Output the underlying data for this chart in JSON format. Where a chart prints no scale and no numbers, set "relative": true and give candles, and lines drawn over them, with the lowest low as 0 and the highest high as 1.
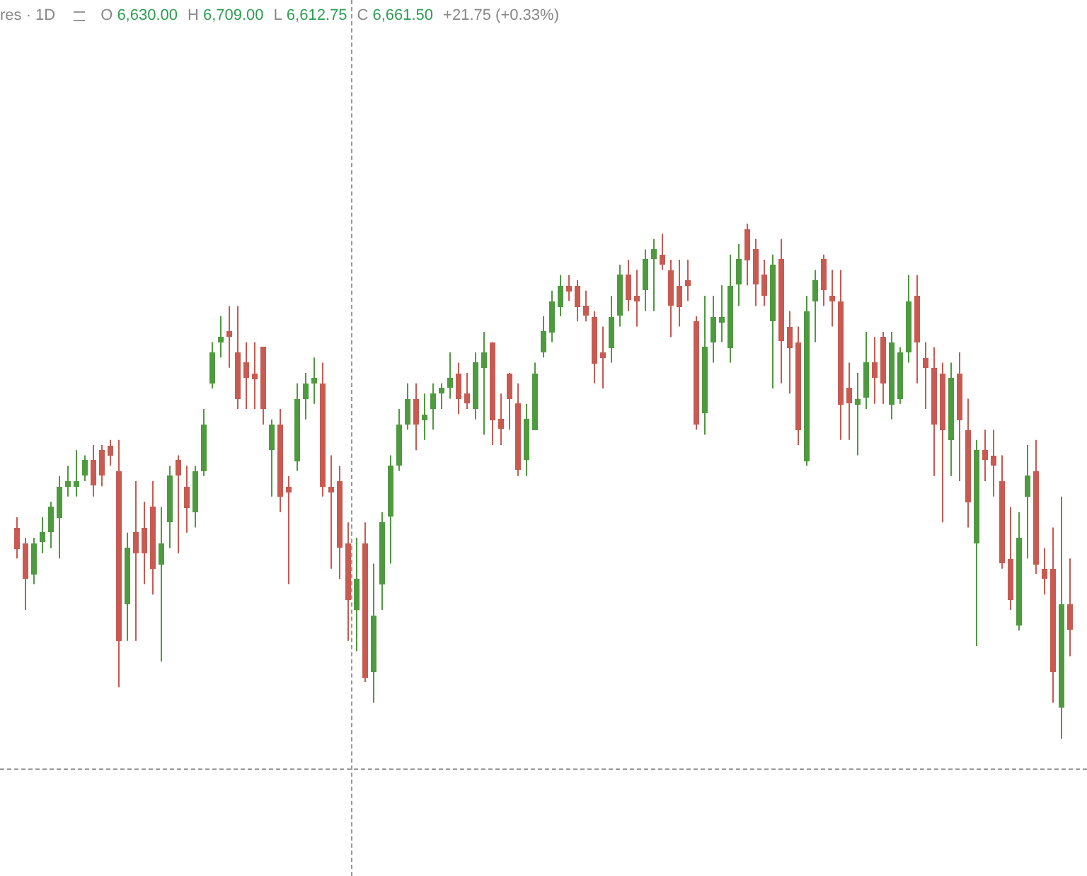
{
  "chart_data": {
    "type": "candlestick",
    "relative": true,
    "annotations": [
      "res · 1D",
      "O",
      "6,630.00",
      "H",
      "6,709.00",
      "L",
      "6,612.75",
      "C",
      "6,661.50",
      "+21.75 (+0.33%)"
    ],
    "categories": [
      null,
      null,
      null,
      null,
      null,
      null,
      null,
      null,
      null,
      null,
      null,
      null,
      null,
      null,
      null,
      null,
      null,
      null,
      null,
      null,
      null,
      null,
      null,
      null,
      null,
      null,
      null,
      null,
      null,
      null,
      null,
      null,
      null,
      null,
      null,
      null,
      null,
      null,
      null,
      null,
      null,
      null,
      null,
      null,
      null,
      null,
      null,
      null,
      null,
      null,
      null,
      null,
      null,
      null,
      null,
      null,
      null,
      null,
      null,
      null,
      null,
      null,
      null,
      null,
      null,
      null,
      null,
      null,
      null,
      null,
      null,
      null,
      null,
      null,
      null,
      null,
      null,
      null,
      null,
      null,
      null,
      null,
      null,
      null,
      null,
      null,
      null,
      null,
      null,
      null,
      null,
      null,
      null,
      null,
      null,
      null,
      null,
      null,
      null,
      null,
      null,
      null,
      null,
      null,
      null,
      null,
      null,
      null,
      null,
      null,
      null,
      null,
      null,
      null,
      null,
      null,
      null,
      null,
      null,
      null,
      null,
      null,
      null,
      null,
      null
    ],
    "ohlc": [
      [
        0.41,
        0.43,
        0.35,
        0.37
      ],
      [
        0.38,
        0.39,
        0.25,
        0.31
      ],
      [
        0.32,
        0.39,
        0.3,
        0.38
      ],
      [
        0.38,
        0.43,
        0.36,
        0.4
      ],
      [
        0.4,
        0.46,
        0.37,
        0.45
      ],
      [
        0.43,
        0.51,
        0.35,
        0.49
      ],
      [
        0.49,
        0.53,
        0.47,
        0.5
      ],
      [
        0.49,
        0.56,
        0.47,
        0.5
      ],
      [
        0.51,
        0.55,
        0.5,
        0.54
      ],
      [
        0.54,
        0.57,
        0.47,
        0.49
      ],
      [
        0.56,
        0.57,
        0.49,
        0.51
      ],
      [
        0.57,
        0.58,
        0.53,
        0.55
      ],
      [
        0.52,
        0.58,
        0.1,
        0.19
      ],
      [
        0.26,
        0.4,
        0.19,
        0.37
      ],
      [
        0.4,
        0.5,
        0.19,
        0.36
      ],
      [
        0.41,
        0.46,
        0.3,
        0.36
      ],
      [
        0.45,
        0.5,
        0.28,
        0.33
      ],
      [
        0.34,
        0.45,
        0.15,
        0.38
      ],
      [
        0.42,
        0.53,
        0.37,
        0.51
      ],
      [
        0.54,
        0.55,
        0.36,
        0.51
      ],
      [
        0.49,
        0.53,
        0.4,
        0.45
      ],
      [
        0.44,
        0.53,
        0.41,
        0.52
      ],
      [
        0.52,
        0.64,
        0.51,
        0.61
      ],
      [
        0.69,
        0.77,
        0.68,
        0.75
      ],
      [
        0.77,
        0.82,
        0.74,
        0.78
      ],
      [
        0.79,
        0.84,
        0.72,
        0.78
      ],
      [
        0.75,
        0.84,
        0.64,
        0.66
      ],
      [
        0.73,
        0.77,
        0.64,
        0.7
      ],
      [
        0.71,
        0.77,
        0.64,
        0.7
      ],
      [
        0.76,
        0.76,
        0.61,
        0.64
      ],
      [
        0.56,
        0.62,
        0.47,
        0.61
      ],
      [
        0.61,
        0.64,
        0.44,
        0.47
      ],
      [
        0.49,
        0.51,
        0.3,
        0.48
      ],
      [
        0.54,
        0.69,
        0.52,
        0.66
      ],
      [
        0.66,
        0.71,
        0.62,
        0.69
      ],
      [
        0.69,
        0.74,
        0.65,
        0.7
      ],
      [
        0.69,
        0.73,
        0.47,
        0.49
      ],
      [
        0.49,
        0.55,
        0.33,
        0.48
      ],
      [
        0.5,
        0.53,
        0.31,
        0.37
      ],
      [
        0.38,
        0.42,
        0.19,
        0.27
      ],
      [
        0.25,
        0.39,
        0.17,
        0.31
      ],
      [
        0.38,
        0.42,
        0.11,
        0.12
      ],
      [
        0.13,
        0.34,
        0.07,
        0.24
      ],
      [
        0.3,
        0.44,
        0.25,
        0.42
      ],
      [
        0.43,
        0.55,
        0.34,
        0.53
      ],
      [
        0.53,
        0.64,
        0.52,
        0.61
      ],
      [
        0.61,
        0.69,
        0.6,
        0.66
      ],
      [
        0.66,
        0.69,
        0.56,
        0.61
      ],
      [
        0.62,
        0.67,
        0.58,
        0.63
      ],
      [
        0.64,
        0.69,
        0.6,
        0.67
      ],
      [
        0.67,
        0.69,
        0.64,
        0.68
      ],
      [
        0.68,
        0.75,
        0.66,
        0.7
      ],
      [
        0.71,
        0.73,
        0.63,
        0.66
      ],
      [
        0.67,
        0.71,
        0.64,
        0.65
      ],
      [
        0.64,
        0.75,
        0.62,
        0.73
      ],
      [
        0.72,
        0.79,
        0.59,
        0.75
      ],
      [
        0.77,
        0.77,
        0.57,
        0.62
      ],
      [
        0.62,
        0.67,
        0.57,
        0.6
      ],
      [
        0.71,
        0.71,
        0.6,
        0.66
      ],
      [
        0.65,
        0.69,
        0.51,
        0.52
      ],
      [
        0.54,
        0.65,
        0.51,
        0.62
      ],
      [
        0.6,
        0.73,
        0.6,
        0.71
      ],
      [
        0.75,
        0.82,
        0.74,
        0.79
      ],
      [
        0.79,
        0.87,
        0.77,
        0.85
      ],
      [
        0.84,
        0.9,
        0.82,
        0.88
      ],
      [
        0.88,
        0.9,
        0.85,
        0.87
      ],
      [
        0.88,
        0.89,
        0.81,
        0.84
      ],
      [
        0.84,
        0.87,
        0.81,
        0.82
      ],
      [
        0.82,
        0.83,
        0.69,
        0.73
      ],
      [
        0.75,
        0.8,
        0.68,
        0.74
      ],
      [
        0.76,
        0.86,
        0.73,
        0.82
      ],
      [
        0.82,
        0.92,
        0.8,
        0.9
      ],
      [
        0.9,
        0.93,
        0.83,
        0.85
      ],
      [
        0.86,
        0.91,
        0.8,
        0.85
      ],
      [
        0.87,
        0.95,
        0.83,
        0.93
      ],
      [
        0.93,
        0.97,
        0.83,
        0.95
      ],
      [
        0.94,
        0.98,
        0.91,
        0.92
      ],
      [
        0.91,
        0.93,
        0.78,
        0.84
      ],
      [
        0.88,
        0.93,
        0.8,
        0.84
      ],
      [
        0.89,
        0.93,
        0.85,
        0.88
      ],
      [
        0.81,
        0.82,
        0.6,
        0.61
      ],
      [
        0.63,
        0.86,
        0.59,
        0.76
      ],
      [
        0.77,
        0.86,
        0.73,
        0.82
      ],
      [
        0.81,
        0.88,
        0.77,
        0.82
      ],
      [
        0.76,
        0.94,
        0.73,
        0.88
      ],
      [
        0.88,
        0.96,
        0.84,
        0.93
      ],
      [
        0.99,
        1.0,
        0.88,
        0.93
      ],
      [
        0.95,
        0.97,
        0.84,
        0.88
      ],
      [
        0.9,
        0.93,
        0.84,
        0.86
      ],
      [
        0.81,
        0.94,
        0.68,
        0.92
      ],
      [
        0.93,
        0.97,
        0.69,
        0.77
      ],
      [
        0.8,
        0.83,
        0.67,
        0.76
      ],
      [
        0.77,
        0.8,
        0.57,
        0.6
      ],
      [
        0.54,
        0.86,
        0.53,
        0.83
      ],
      [
        0.85,
        0.91,
        0.77,
        0.89
      ],
      [
        0.93,
        0.94,
        0.84,
        0.87
      ],
      [
        0.86,
        0.91,
        0.8,
        0.85
      ],
      [
        0.85,
        0.91,
        0.58,
        0.65
      ],
      [
        0.68,
        0.73,
        0.58,
        0.65
      ],
      [
        0.65,
        0.71,
        0.55,
        0.66
      ],
      [
        0.66,
        0.79,
        0.64,
        0.73
      ],
      [
        0.73,
        0.78,
        0.65,
        0.7
      ],
      [
        0.78,
        0.79,
        0.65,
        0.69
      ],
      [
        0.65,
        0.79,
        0.62,
        0.77
      ],
      [
        0.66,
        0.76,
        0.65,
        0.75
      ],
      [
        0.75,
        0.9,
        0.73,
        0.85
      ],
      [
        0.86,
        0.9,
        0.69,
        0.77
      ],
      [
        0.74,
        0.77,
        0.64,
        0.72
      ],
      [
        0.72,
        0.76,
        0.51,
        0.61
      ],
      [
        0.71,
        0.73,
        0.42,
        0.6
      ],
      [
        0.58,
        0.73,
        0.51,
        0.7
      ],
      [
        0.71,
        0.75,
        0.5,
        0.62
      ],
      [
        0.6,
        0.66,
        0.41,
        0.46
      ],
      [
        0.38,
        0.58,
        0.18,
        0.56
      ],
      [
        0.56,
        0.6,
        0.5,
        0.54
      ],
      [
        0.55,
        0.6,
        0.47,
        0.53
      ],
      [
        0.5,
        0.55,
        0.33,
        0.34
      ],
      [
        0.35,
        0.45,
        0.25,
        0.27
      ],
      [
        0.22,
        0.44,
        0.21,
        0.39
      ],
      [
        0.47,
        0.57,
        0.35,
        0.51
      ],
      [
        0.52,
        0.58,
        0.32,
        0.34
      ],
      [
        0.33,
        0.37,
        0.28,
        0.31
      ],
      [
        0.33,
        0.41,
        0.07,
        0.13
      ],
      [
        0.06,
        0.47,
        0,
        0.26
      ],
      [
        0.26,
        0.35,
        0.16,
        0.21
      ]
    ],
    "colors": [
      "#c85a52",
      "#c85a52",
      "#4e9a3e",
      "#4e9a3e",
      "#4e9a3e",
      "#4e9a3e",
      "#4e9a3e",
      "#4e9a3e",
      "#4e9a3e",
      "#c85a52",
      "#c85a52",
      "#c85a52",
      "#c85a52",
      "#4e9a3e",
      "#c85a52",
      "#c85a52",
      "#c85a52",
      "#4e9a3e",
      "#4e9a3e",
      "#c85a52",
      "#c85a52",
      "#4e9a3e",
      "#4e9a3e",
      "#4e9a3e",
      "#4e9a3e",
      "#c85a52",
      "#c85a52",
      "#c85a52",
      "#c85a52",
      "#c85a52",
      "#4e9a3e",
      "#c85a52",
      "#c85a52",
      "#4e9a3e",
      "#4e9a3e",
      "#4e9a3e",
      "#c85a52",
      "#c85a52",
      "#c85a52",
      "#c85a52",
      "#4e9a3e",
      "#c85a52",
      "#4e9a3e",
      "#4e9a3e",
      "#4e9a3e",
      "#4e9a3e",
      "#4e9a3e",
      "#c85a52",
      "#4e9a3e",
      "#4e9a3e",
      "#4e9a3e",
      "#4e9a3e",
      "#c85a52",
      "#c85a52",
      "#4e9a3e",
      "#4e9a3e",
      "#c85a52",
      "#c85a52",
      "#c85a52",
      "#c85a52",
      "#4e9a3e",
      "#4e9a3e",
      "#4e9a3e",
      "#4e9a3e",
      "#4e9a3e",
      "#c85a52",
      "#c85a52",
      "#c85a52",
      "#c85a52",
      "#c85a52",
      "#4e9a3e",
      "#4e9a3e",
      "#c85a52",
      "#c85a52",
      "#4e9a3e",
      "#4e9a3e",
      "#c85a52",
      "#c85a52",
      "#c85a52",
      "#c85a52",
      "#c85a52",
      "#4e9a3e",
      "#4e9a3e",
      "#4e9a3e",
      "#4e9a3e",
      "#4e9a3e",
      "#c85a52",
      "#c85a52",
      "#c85a52",
      "#4e9a3e",
      "#c85a52",
      "#c85a52",
      "#c85a52",
      "#4e9a3e",
      "#4e9a3e",
      "#c85a52",
      "#c85a52",
      "#c85a52",
      "#c85a52",
      "#4e9a3e",
      "#4e9a3e",
      "#c85a52",
      "#c85a52",
      "#4e9a3e",
      "#4e9a3e",
      "#4e9a3e",
      "#c85a52",
      "#c85a52",
      "#c85a52",
      "#c85a52",
      "#4e9a3e",
      "#c85a52",
      "#c85a52",
      "#4e9a3e",
      "#c85a52",
      "#c85a52",
      "#c85a52",
      "#c85a52",
      "#4e9a3e",
      "#4e9a3e",
      "#c85a52",
      "#c85a52",
      "#c85a52",
      "#4e9a3e",
      "#c85a52"
    ]
  }
}
